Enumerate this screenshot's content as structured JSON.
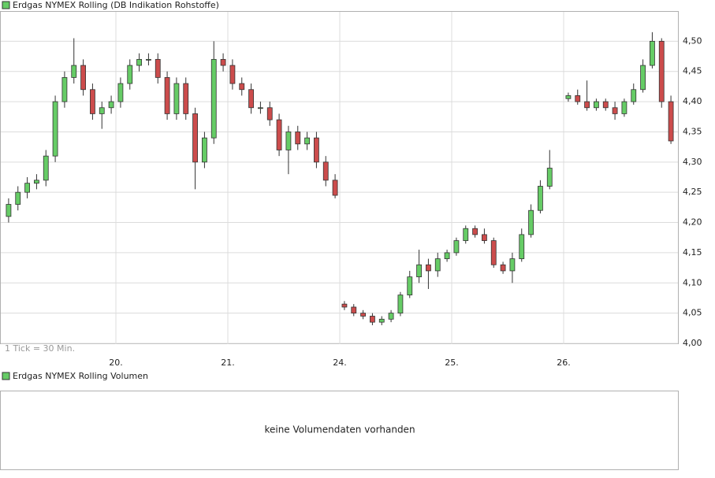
{
  "chart_data": {
    "type": "candlestick",
    "title": "Erdgas NYMEX Rolling (DB Indikation Rohstoffe)",
    "annotation": "1 Tick = 30 Min.",
    "up_color": "#66cc66",
    "down_color": "#cc4c4c",
    "grid": true,
    "categories": [
      null,
      null,
      null,
      null,
      null,
      null,
      null,
      null,
      null,
      null,
      null,
      null,
      "20.",
      null,
      null,
      null,
      null,
      null,
      null,
      null,
      null,
      null,
      null,
      null,
      "21.",
      null,
      null,
      null,
      null,
      null,
      null,
      null,
      null,
      null,
      null,
      null,
      "24.",
      null,
      null,
      null,
      null,
      null,
      null,
      null,
      null,
      null,
      null,
      null,
      "25.",
      null,
      null,
      null,
      null,
      null,
      null,
      null,
      null,
      null,
      null,
      null,
      "26.",
      null,
      null,
      null,
      null,
      null,
      null,
      null,
      null,
      null,
      null,
      null
    ],
    "open": [
      4.21,
      4.23,
      4.25,
      4.265,
      4.27,
      4.31,
      4.4,
      4.44,
      4.46,
      4.42,
      4.38,
      4.39,
      4.4,
      4.43,
      4.46,
      4.47,
      4.47,
      4.44,
      4.38,
      4.43,
      4.38,
      4.3,
      4.34,
      4.47,
      4.46,
      4.43,
      4.42,
      4.39,
      4.39,
      4.37,
      4.32,
      4.35,
      4.33,
      4.34,
      4.3,
      4.27,
      4.065,
      4.06,
      4.05,
      4.045,
      4.035,
      4.04,
      4.05,
      4.08,
      4.11,
      4.13,
      4.12,
      4.14,
      4.15,
      4.17,
      4.19,
      4.18,
      4.17,
      4.13,
      4.12,
      4.14,
      4.18,
      4.22,
      4.26,
      null,
      4.405,
      4.41,
      4.4,
      4.39,
      4.4,
      4.39,
      4.38,
      4.4,
      4.42,
      4.46,
      4.5,
      4.4
    ],
    "high": [
      4.24,
      4.26,
      4.275,
      4.28,
      4.32,
      4.41,
      4.45,
      4.505,
      4.47,
      4.43,
      4.4,
      4.41,
      4.44,
      4.47,
      4.48,
      4.48,
      4.48,
      4.45,
      4.44,
      4.44,
      4.39,
      4.35,
      4.5,
      4.48,
      4.47,
      4.44,
      4.43,
      4.4,
      4.4,
      4.38,
      4.36,
      4.36,
      4.35,
      4.35,
      4.31,
      4.28,
      4.07,
      4.065,
      4.055,
      4.05,
      4.045,
      4.055,
      4.085,
      4.12,
      4.155,
      4.14,
      4.15,
      4.155,
      4.175,
      4.195,
      4.195,
      4.19,
      4.175,
      4.135,
      4.15,
      4.19,
      4.23,
      4.27,
      4.32,
      null,
      4.415,
      4.42,
      4.435,
      4.405,
      4.405,
      4.4,
      4.405,
      4.43,
      4.47,
      4.515,
      4.505,
      4.41
    ],
    "low": [
      4.2,
      4.22,
      4.24,
      4.255,
      4.26,
      4.3,
      4.39,
      4.43,
      4.41,
      4.37,
      4.355,
      4.38,
      4.39,
      4.42,
      4.45,
      4.46,
      4.43,
      4.37,
      4.37,
      4.37,
      4.255,
      4.29,
      4.33,
      4.45,
      4.42,
      4.41,
      4.38,
      4.38,
      4.36,
      4.31,
      4.28,
      4.32,
      4.32,
      4.29,
      4.26,
      4.24,
      4.055,
      4.045,
      4.04,
      4.03,
      4.03,
      4.035,
      4.045,
      4.075,
      4.1,
      4.09,
      4.11,
      4.135,
      4.145,
      4.165,
      4.175,
      4.165,
      4.125,
      4.115,
      4.1,
      4.135,
      4.175,
      4.215,
      4.255,
      null,
      4.4,
      4.395,
      4.385,
      4.385,
      4.385,
      4.37,
      4.375,
      4.395,
      4.415,
      4.455,
      4.39,
      4.33
    ],
    "close": [
      4.23,
      4.25,
      4.265,
      4.27,
      4.31,
      4.4,
      4.44,
      4.46,
      4.42,
      4.38,
      4.39,
      4.4,
      4.43,
      4.46,
      4.47,
      4.47,
      4.44,
      4.38,
      4.43,
      4.38,
      4.3,
      4.34,
      4.47,
      4.46,
      4.43,
      4.42,
      4.39,
      4.39,
      4.37,
      4.32,
      4.35,
      4.33,
      4.34,
      4.3,
      4.27,
      4.245,
      4.06,
      4.05,
      4.045,
      4.035,
      4.04,
      4.05,
      4.08,
      4.11,
      4.13,
      4.12,
      4.14,
      4.15,
      4.17,
      4.19,
      4.18,
      4.17,
      4.13,
      4.12,
      4.14,
      4.18,
      4.22,
      4.26,
      4.29,
      null,
      4.41,
      4.4,
      4.39,
      4.4,
      4.39,
      4.38,
      4.4,
      4.42,
      4.46,
      4.5,
      4.4,
      4.335
    ],
    "ylim": [
      4.0,
      4.55
    ],
    "yticks": [
      {
        "value": 4.0,
        "label": "4,00"
      },
      {
        "value": 4.05,
        "label": "4,05"
      },
      {
        "value": 4.1,
        "label": "4,10"
      },
      {
        "value": 4.15,
        "label": "4,15"
      },
      {
        "value": 4.2,
        "label": "4,20"
      },
      {
        "value": 4.25,
        "label": "4,25"
      },
      {
        "value": 4.3,
        "label": "4,30"
      },
      {
        "value": 4.35,
        "label": "4,35"
      },
      {
        "value": 4.4,
        "label": "4,40"
      },
      {
        "value": 4.45,
        "label": "4,45"
      },
      {
        "value": 4.5,
        "label": "4,50"
      }
    ]
  },
  "volume_panel": {
    "title": "Erdgas NYMEX Rolling Volumen",
    "message": "keine Volumendaten vorhanden"
  }
}
